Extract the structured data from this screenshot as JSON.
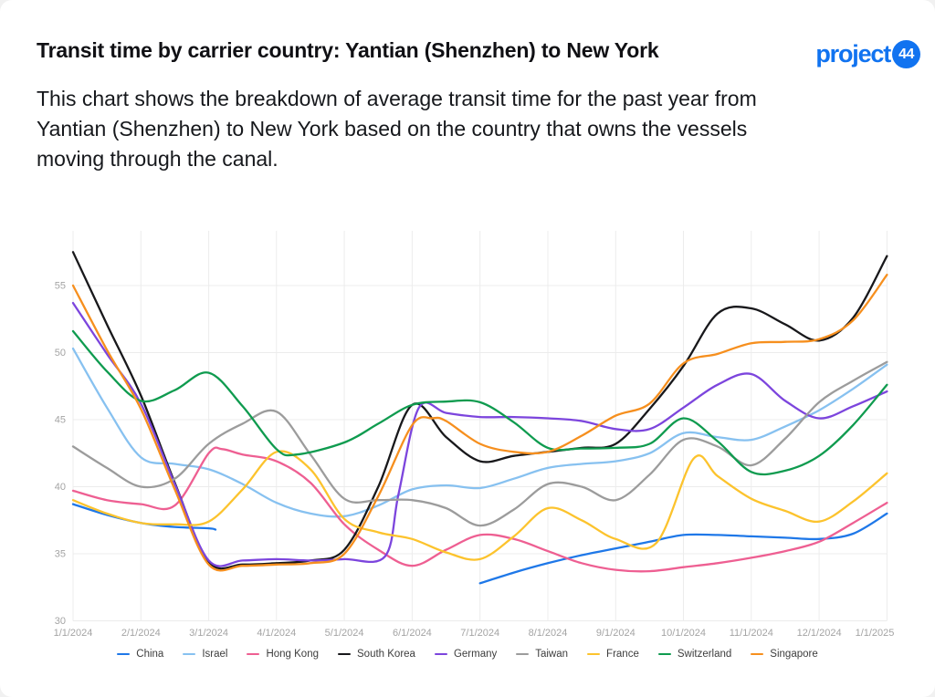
{
  "header": {
    "title": "Transit time by carrier country: Yantian (Shenzhen) to New York",
    "subtitle": "This chart shows the breakdown of average transit time for the past year from Yantian (Shenzhen) to New York based on the country that owns the vessels moving through the canal.",
    "logo": {
      "wordmark": "project",
      "badge": "44",
      "color": "#1173f0"
    }
  },
  "chart_data": {
    "type": "line",
    "title": "Transit time by carrier country: Yantian (Shenzhen) to New York",
    "xlabel": "",
    "ylabel": "",
    "x_unit": "months since 1/1/2024 (0 = 1/1/2024, 12 = 1/1/2025)",
    "x_tick_labels": [
      "1/1/2024",
      "2/1/2024",
      "3/1/2024",
      "4/1/2024",
      "5/1/2024",
      "6/1/2024",
      "7/1/2024",
      "8/1/2024",
      "9/1/2024",
      "10/1/2024",
      "11/1/2024",
      "12/1/2024",
      "1/1/2025"
    ],
    "y_ticks": [
      30,
      35,
      40,
      45,
      50,
      55
    ],
    "ylim": [
      30,
      58.6
    ],
    "grid": true,
    "legend_position": "bottom",
    "colors": {
      "grid": "#ececec",
      "tick_label": "#a4a4a4",
      "legend_label": "#3d3d3d"
    },
    "series": [
      {
        "name": "China",
        "color": "#1f78e8",
        "segments": [
          [
            [
              0,
              38.7
            ],
            [
              0.5,
              37.9
            ],
            [
              1,
              37.3
            ],
            [
              1.5,
              37.0
            ],
            [
              2,
              36.9
            ],
            [
              2.1,
              36.8
            ]
          ],
          [
            [
              6,
              32.8
            ],
            [
              6.5,
              33.6
            ],
            [
              7,
              34.3
            ],
            [
              7.5,
              34.9
            ],
            [
              8,
              35.4
            ],
            [
              8.5,
              35.9
            ],
            [
              9,
              36.4
            ],
            [
              9.5,
              36.4
            ],
            [
              10,
              36.3
            ],
            [
              10.5,
              36.2
            ],
            [
              11,
              36.1
            ],
            [
              11.5,
              36.5
            ],
            [
              12,
              38.0
            ]
          ]
        ]
      },
      {
        "name": "Israel",
        "color": "#87c1f0",
        "segments": [
          [
            [
              0,
              50.3
            ],
            [
              0.5,
              45.9
            ],
            [
              1,
              42.2
            ],
            [
              1.5,
              41.7
            ],
            [
              2,
              41.3
            ],
            [
              2.5,
              40.2
            ],
            [
              3,
              38.8
            ],
            [
              3.5,
              38.0
            ],
            [
              4,
              37.8
            ],
            [
              4.5,
              38.6
            ],
            [
              5,
              39.8
            ],
            [
              5.5,
              40.1
            ],
            [
              6,
              39.9
            ],
            [
              6.5,
              40.6
            ],
            [
              7,
              41.4
            ],
            [
              7.5,
              41.7
            ],
            [
              8,
              41.9
            ],
            [
              8.5,
              42.5
            ],
            [
              9,
              44.0
            ],
            [
              9.5,
              43.7
            ],
            [
              10,
              43.5
            ],
            [
              10.5,
              44.5
            ],
            [
              11,
              45.7
            ],
            [
              11.5,
              47.3
            ],
            [
              12,
              49.1
            ]
          ]
        ]
      },
      {
        "name": "Hong Kong",
        "color": "#ee5f92",
        "segments": [
          [
            [
              0,
              39.7
            ],
            [
              0.5,
              39.0
            ],
            [
              1,
              38.7
            ],
            [
              1.5,
              38.6
            ],
            [
              2,
              42.5
            ],
            [
              2.2,
              42.8
            ],
            [
              2.5,
              42.4
            ],
            [
              3,
              41.9
            ],
            [
              3.5,
              40.3
            ],
            [
              4,
              37.2
            ],
            [
              4.5,
              35.3
            ],
            [
              5,
              34.1
            ],
            [
              5.5,
              35.3
            ],
            [
              6,
              36.4
            ],
            [
              6.5,
              36.1
            ],
            [
              7,
              35.2
            ],
            [
              7.5,
              34.3
            ],
            [
              8,
              33.8
            ],
            [
              8.5,
              33.7
            ],
            [
              9,
              34.0
            ],
            [
              9.5,
              34.3
            ],
            [
              10,
              34.7
            ],
            [
              10.5,
              35.2
            ],
            [
              11,
              35.9
            ],
            [
              11.5,
              37.3
            ],
            [
              12,
              38.8
            ]
          ]
        ]
      },
      {
        "name": "South Korea",
        "color": "#18181b",
        "segments": [
          [
            [
              0,
              57.5
            ],
            [
              0.5,
              52.1
            ],
            [
              1,
              46.8
            ],
            [
              1.5,
              40.3
            ],
            [
              2,
              34.4
            ],
            [
              2.5,
              34.2
            ],
            [
              3,
              34.3
            ],
            [
              3.5,
              34.5
            ],
            [
              4,
              35.3
            ],
            [
              4.5,
              40.0
            ],
            [
              5,
              46.1
            ],
            [
              5.5,
              43.7
            ],
            [
              6,
              41.9
            ],
            [
              6.5,
              42.3
            ],
            [
              7,
              42.6
            ],
            [
              7.5,
              42.9
            ],
            [
              8,
              43.2
            ],
            [
              8.5,
              45.8
            ],
            [
              9,
              49.0
            ],
            [
              9.5,
              52.9
            ],
            [
              10,
              53.3
            ],
            [
              10.5,
              52.1
            ],
            [
              11,
              50.9
            ],
            [
              11.5,
              52.6
            ],
            [
              12,
              57.2
            ]
          ]
        ]
      },
      {
        "name": "Germany",
        "color": "#7c45dd",
        "segments": [
          [
            [
              0,
              53.7
            ],
            [
              0.5,
              49.9
            ],
            [
              1,
              46.2
            ],
            [
              1.5,
              40.2
            ],
            [
              2,
              34.5
            ],
            [
              2.5,
              34.5
            ],
            [
              3,
              34.6
            ],
            [
              3.5,
              34.5
            ],
            [
              4,
              34.6
            ],
            [
              4.6,
              34.8
            ],
            [
              4.8,
              39.5
            ],
            [
              5.1,
              45.9
            ],
            [
              5.5,
              45.5
            ],
            [
              6,
              45.2
            ],
            [
              6.5,
              45.2
            ],
            [
              7,
              45.1
            ],
            [
              7.5,
              44.9
            ],
            [
              8,
              44.3
            ],
            [
              8.5,
              44.3
            ],
            [
              9,
              45.9
            ],
            [
              9.5,
              47.6
            ],
            [
              10,
              48.4
            ],
            [
              10.5,
              46.4
            ],
            [
              11,
              45.1
            ],
            [
              11.5,
              46.0
            ],
            [
              12,
              47.1
            ]
          ]
        ]
      },
      {
        "name": "Taiwan",
        "color": "#9c9c9c",
        "segments": [
          [
            [
              0,
              43.0
            ],
            [
              0.5,
              41.4
            ],
            [
              1,
              40.0
            ],
            [
              1.5,
              40.6
            ],
            [
              2,
              43.2
            ],
            [
              2.5,
              44.7
            ],
            [
              3,
              45.6
            ],
            [
              3.5,
              42.4
            ],
            [
              4,
              39.1
            ],
            [
              4.5,
              39.0
            ],
            [
              5,
              39.0
            ],
            [
              5.5,
              38.4
            ],
            [
              6,
              37.1
            ],
            [
              6.5,
              38.3
            ],
            [
              7,
              40.2
            ],
            [
              7.5,
              40.0
            ],
            [
              8,
              39.0
            ],
            [
              8.5,
              40.9
            ],
            [
              9,
              43.5
            ],
            [
              9.5,
              43.0
            ],
            [
              10,
              41.6
            ],
            [
              10.5,
              43.6
            ],
            [
              11,
              46.3
            ],
            [
              11.5,
              47.9
            ],
            [
              12,
              49.3
            ]
          ]
        ]
      },
      {
        "name": "France",
        "color": "#fcc32d",
        "segments": [
          [
            [
              0,
              39.0
            ],
            [
              0.5,
              38.0
            ],
            [
              1,
              37.3
            ],
            [
              1.5,
              37.2
            ],
            [
              2,
              37.4
            ],
            [
              2.5,
              39.8
            ],
            [
              3,
              42.6
            ],
            [
              3.5,
              41.3
            ],
            [
              4,
              37.6
            ],
            [
              4.5,
              36.6
            ],
            [
              5,
              36.1
            ],
            [
              5.5,
              35.1
            ],
            [
              6,
              34.6
            ],
            [
              6.5,
              36.3
            ],
            [
              7,
              38.4
            ],
            [
              7.5,
              37.5
            ],
            [
              8,
              36.1
            ],
            [
              8.6,
              35.8
            ],
            [
              9.15,
              42.1
            ],
            [
              9.5,
              40.8
            ],
            [
              10,
              39.1
            ],
            [
              10.5,
              38.2
            ],
            [
              11,
              37.4
            ],
            [
              11.5,
              38.9
            ],
            [
              12,
              41.0
            ]
          ]
        ]
      },
      {
        "name": "Switzerland",
        "color": "#0f9b4f",
        "segments": [
          [
            [
              0,
              51.6
            ],
            [
              0.5,
              48.6
            ],
            [
              1,
              46.4
            ],
            [
              1.5,
              47.2
            ],
            [
              2,
              48.5
            ],
            [
              2.5,
              46.0
            ],
            [
              3,
              42.8
            ],
            [
              3.3,
              42.4
            ],
            [
              4,
              43.3
            ],
            [
              4.5,
              44.7
            ],
            [
              5,
              46.1
            ],
            [
              5.5,
              46.35
            ],
            [
              6,
              46.3
            ],
            [
              6.5,
              44.8
            ],
            [
              7,
              42.9
            ],
            [
              7.5,
              42.85
            ],
            [
              8,
              42.9
            ],
            [
              8.5,
              43.2
            ],
            [
              9,
              45.1
            ],
            [
              9.5,
              43.4
            ],
            [
              10,
              41.1
            ],
            [
              10.5,
              41.2
            ],
            [
              11,
              42.3
            ],
            [
              11.5,
              44.6
            ],
            [
              12,
              47.6
            ]
          ]
        ]
      },
      {
        "name": "Singapore",
        "color": "#f68f1e",
        "segments": [
          [
            [
              0,
              55.0
            ],
            [
              0.5,
              50.2
            ],
            [
              1,
              45.8
            ],
            [
              1.5,
              39.8
            ],
            [
              2,
              34.2
            ],
            [
              2.5,
              34.1
            ],
            [
              3,
              34.2
            ],
            [
              3.5,
              34.3
            ],
            [
              4,
              35.0
            ],
            [
              4.5,
              39.3
            ],
            [
              5,
              44.6
            ],
            [
              5.3,
              45.1
            ],
            [
              5.5,
              44.9
            ],
            [
              6,
              43.2
            ],
            [
              6.5,
              42.6
            ],
            [
              7,
              42.6
            ],
            [
              7.5,
              43.8
            ],
            [
              8,
              45.3
            ],
            [
              8.5,
              46.2
            ],
            [
              9,
              49.2
            ],
            [
              9.5,
              49.9
            ],
            [
              10,
              50.7
            ],
            [
              10.5,
              50.8
            ],
            [
              11,
              51.0
            ],
            [
              11.5,
              52.4
            ],
            [
              12,
              55.8
            ]
          ]
        ]
      }
    ]
  }
}
